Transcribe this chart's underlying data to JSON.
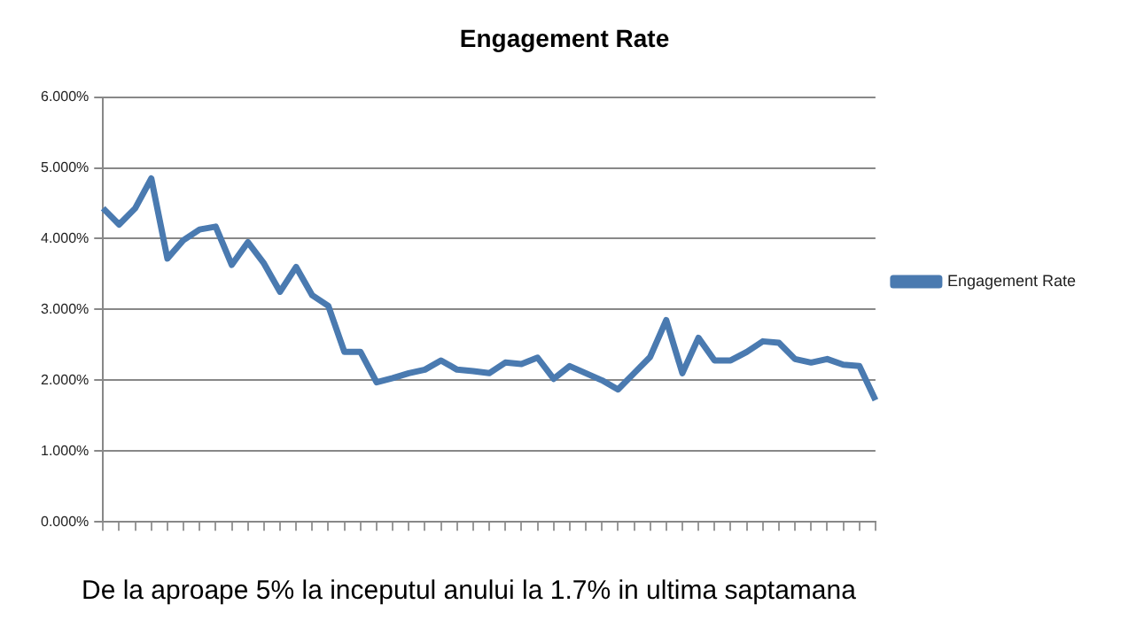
{
  "chart_data": {
    "type": "line",
    "title": "Engagement Rate",
    "categories": [
      null,
      null,
      null,
      null,
      null,
      null,
      null,
      null,
      null,
      null,
      null,
      null,
      null,
      null,
      null,
      null,
      null,
      null,
      null,
      null,
      null,
      null,
      null,
      null,
      null,
      null,
      null,
      null,
      null,
      null,
      null,
      null,
      null,
      null,
      null,
      null,
      null,
      null,
      null,
      null,
      null,
      null,
      null,
      null,
      null,
      null,
      null,
      null,
      null
    ],
    "series": [
      {
        "name": "Engagement Rate",
        "color": "#4a7ab0",
        "values": [
          4.43,
          4.2,
          4.43,
          4.85,
          3.72,
          3.98,
          4.13,
          4.17,
          3.63,
          3.95,
          3.65,
          3.25,
          3.6,
          3.2,
          3.05,
          2.4,
          2.4,
          1.97,
          2.03,
          2.1,
          2.15,
          2.28,
          2.15,
          2.13,
          2.1,
          2.25,
          2.23,
          2.32,
          2.02,
          2.2,
          2.1,
          2.0,
          1.87,
          2.1,
          2.33,
          2.85,
          2.1,
          2.6,
          2.28,
          2.28,
          2.4,
          2.55,
          2.53,
          2.3,
          2.25,
          2.3,
          2.22,
          2.2,
          1.72
        ]
      }
    ],
    "ylim": [
      0,
      6
    ],
    "yticks": [
      {
        "value": 0,
        "label": "0.000%"
      },
      {
        "value": 1,
        "label": "1.000%"
      },
      {
        "value": 2,
        "label": "2.000%"
      },
      {
        "value": 3,
        "label": "3.000%"
      },
      {
        "value": 4,
        "label": "4.000%"
      },
      {
        "value": 5,
        "label": "5.000%"
      },
      {
        "value": 6,
        "label": "6.000%"
      }
    ],
    "grid": "y",
    "legend": "right",
    "marker": "none",
    "line_style": "solid",
    "annotations": [
      "De la aproape 5% la inceputul anului la 1.7% in ultima saptamana"
    ]
  }
}
